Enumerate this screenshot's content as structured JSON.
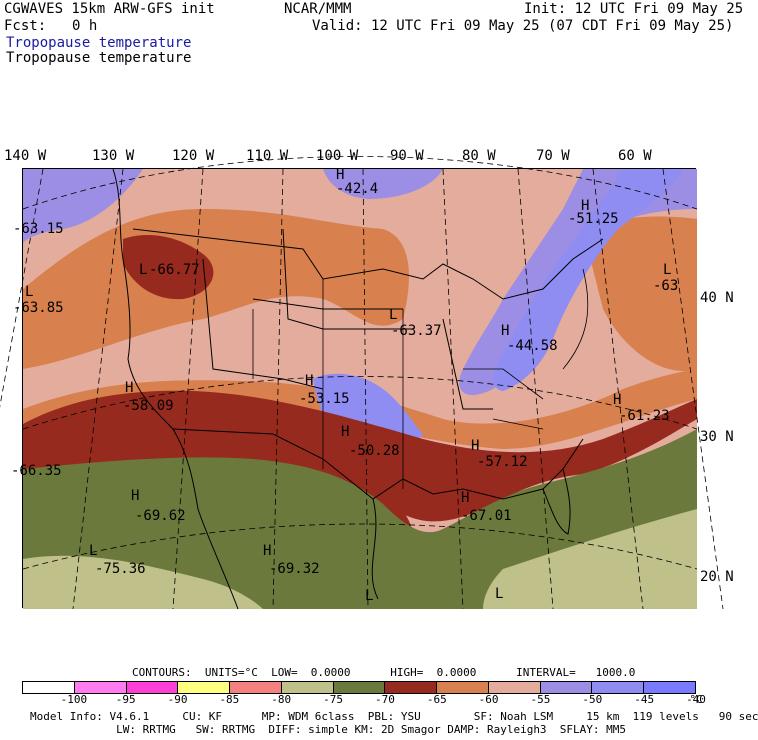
{
  "header": {
    "model": "CGWAVES 15km ARW-GFS init",
    "org": "NCAR/MMM",
    "init": "Init: 12 UTC Fri 09 May 25",
    "fcst_label": "Fcst:",
    "fcst_value": "0 h",
    "valid": "Valid: 12 UTC Fri 09 May 25 (07 CDT Fri 09 May 25)",
    "field_title_1": "Tropopause temperature",
    "field_title_2": "Tropopause temperature"
  },
  "map": {
    "lon_labels": [
      "140 W",
      "130 W",
      "120 W",
      "110 W",
      "100 W",
      "90 W",
      "80 W",
      "70 W",
      "60 W"
    ],
    "lat_labels": [
      "40 N",
      "30 N",
      "20 N"
    ],
    "extrema": [
      {
        "type": "H",
        "value": "-42.4"
      },
      {
        "type": "L",
        "value": "-63.15"
      },
      {
        "type": "H",
        "value": "-51.25"
      },
      {
        "type": "L",
        "value": "-66.77"
      },
      {
        "type": "L",
        "value": "-63.85"
      },
      {
        "type": "L",
        "value": "-63.37"
      },
      {
        "type": "H",
        "value": "-44.58"
      },
      {
        "type": "L",
        "value": "-63"
      },
      {
        "type": "H",
        "value": "-58.09"
      },
      {
        "type": "H",
        "value": "-53.15"
      },
      {
        "type": "H",
        "value": "-50.28"
      },
      {
        "type": "H",
        "value": "-61.23"
      },
      {
        "type": "H",
        "value": "-57.12"
      },
      {
        "type": "L",
        "value": "-66.35"
      },
      {
        "type": "H",
        "value": "-69.62"
      },
      {
        "type": "H",
        "value": "-67.01"
      },
      {
        "type": "L",
        "value": "-75.36"
      },
      {
        "type": "H",
        "value": "-69.32"
      },
      {
        "type": "L",
        "value": ""
      },
      {
        "type": "L",
        "value": ""
      }
    ],
    "colors": {
      "c_lt_70": "#6b7a3c",
      "c_70_65": "#962a1e",
      "c_65_60": "#d8804e",
      "c_60_55": "#e4ac9c",
      "c_55_50": "#9c8ee4",
      "c_50_45": "#8f8cf2",
      "c_75_80": "#bfc08a"
    }
  },
  "footer": {
    "contours": "CONTOURS:  UNITS=°C  LOW=  0.0000      HIGH=  0.0000      INTERVAL=   1000.0",
    "colorbar": {
      "colors": [
        "#ffffff",
        "#ff7bf0",
        "#ff40d8",
        "#ffff80",
        "#f48080",
        "#bfc08a",
        "#6b7a3c",
        "#962a1e",
        "#d8804e",
        "#e4ac9c",
        "#9c8ee4",
        "#8f8cf2",
        "#7a7aff"
      ],
      "labels": [
        "-100",
        "-95",
        "-90",
        "-85",
        "-80",
        "-75",
        "-70",
        "-65",
        "-60",
        "-55",
        "-50",
        "-45",
        "-40",
        "°C"
      ]
    },
    "model_info_1": "Model Info: V4.6.1     CU: KF      MP: WDM 6class  PBL: YSU        SF: Noah LSM     15 km  119 levels   90 sec",
    "model_info_2": "             LW: RRTMG   SW: RRTMG  DIFF: simple KM: 2D Smagor DAMP: Rayleigh3  SFLAY: MM5"
  }
}
